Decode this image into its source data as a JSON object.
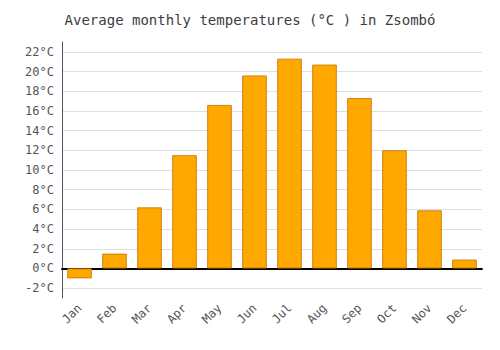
{
  "chart_data": {
    "type": "bar",
    "title": "Average monthly temperatures (°C ) in Zsombó",
    "categories": [
      "Jan",
      "Feb",
      "Mar",
      "Apr",
      "May",
      "Jun",
      "Jul",
      "Aug",
      "Sep",
      "Oct",
      "Nov",
      "Dec"
    ],
    "values": [
      -1.0,
      1.5,
      6.2,
      11.5,
      16.6,
      19.6,
      21.3,
      20.7,
      17.3,
      12.0,
      5.9,
      0.9
    ],
    "color": "#FFA800",
    "ylim": [
      -3,
      23
    ],
    "yticks": [
      {
        "value": -2,
        "label": "-2°C"
      },
      {
        "value": 0,
        "label": "0°C"
      },
      {
        "value": 2,
        "label": "2°C"
      },
      {
        "value": 4,
        "label": "4°C"
      },
      {
        "value": 6,
        "label": "6°C"
      },
      {
        "value": 8,
        "label": "8°C"
      },
      {
        "value": 10,
        "label": "10°C"
      },
      {
        "value": 12,
        "label": "12°C"
      },
      {
        "value": 14,
        "label": "14°C"
      },
      {
        "value": 16,
        "label": "16°C"
      },
      {
        "value": 18,
        "label": "18°C"
      },
      {
        "value": 20,
        "label": "20°C"
      },
      {
        "value": 22,
        "label": "22°C"
      }
    ],
    "grid": true
  }
}
